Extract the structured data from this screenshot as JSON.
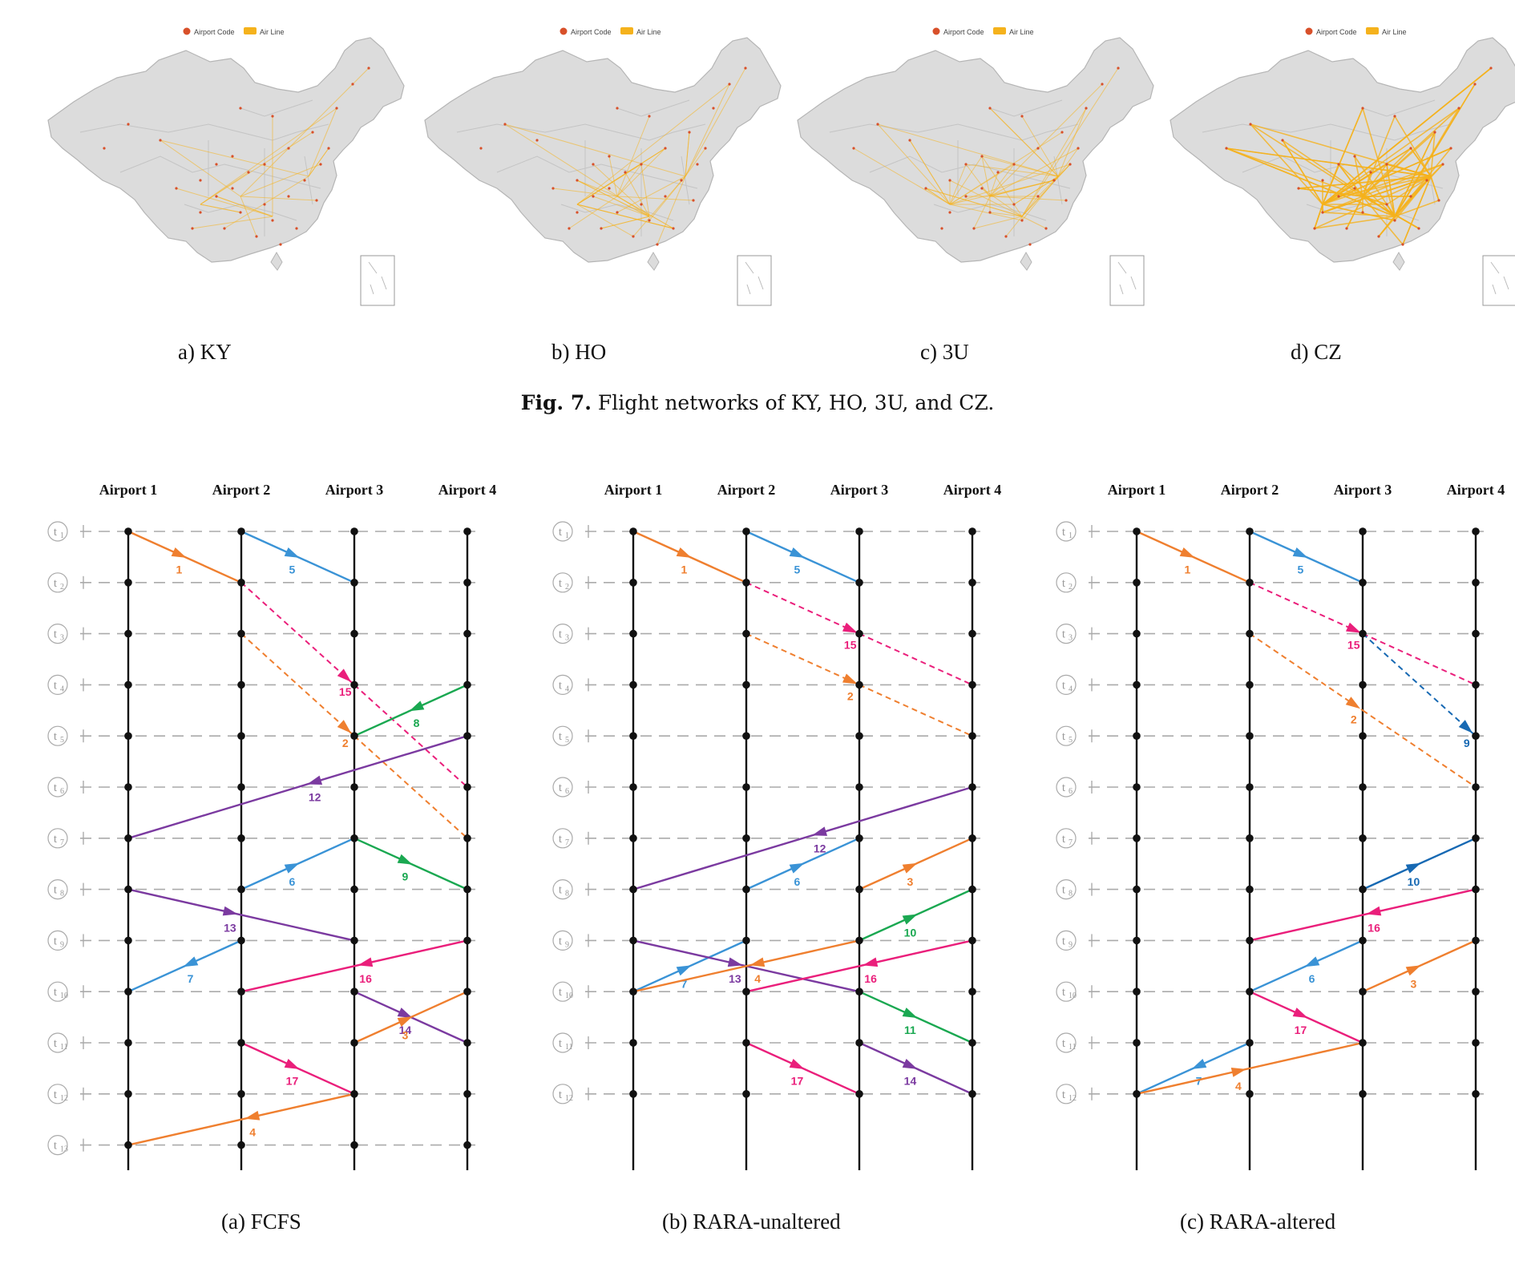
{
  "maps": {
    "legend": {
      "airport": "Airport Code",
      "airline": "Air Line"
    },
    "colors": {
      "land": "#dcdcdc",
      "border": "#b5b5b5",
      "route": "#f5b21c",
      "airport": "#d8502a"
    },
    "panels": [
      {
        "caption": "a) KY",
        "density": "low"
      },
      {
        "caption": "b) HO",
        "density": "medium"
      },
      {
        "caption": "c) 3U",
        "density": "medium-high"
      },
      {
        "caption": "d) CZ",
        "density": "high"
      }
    ]
  },
  "fig7": {
    "label": "Fig. 7.",
    "text": "Flight networks of KY, HO, 3U, and CZ."
  },
  "diagrams": {
    "airports": [
      "Airport 1",
      "Airport 2",
      "Airport 3",
      "Airport 4"
    ],
    "time_prefix": "t",
    "colors": {
      "orange": "#ef7f2f",
      "blue": "#3a93d6",
      "pink": "#ea1f7b",
      "green": "#1aa851",
      "purple": "#7b3aa0",
      "darkblue": "#1769b3"
    },
    "panels": [
      {
        "caption": "(a) FCFS",
        "time_slots": 13,
        "flights": [
          {
            "label": "1",
            "from": [
              1,
              1
            ],
            "to": [
              2,
              2
            ],
            "color": "orange",
            "dashed": false
          },
          {
            "label": "5",
            "from": [
              2,
              1
            ],
            "to": [
              3,
              2
            ],
            "color": "blue",
            "dashed": false
          },
          {
            "label": "15",
            "from": [
              2,
              2
            ],
            "to": [
              3,
              4
            ],
            "color": "pink",
            "dashed": true
          },
          {
            "label": "",
            "from": [
              3,
              4
            ],
            "to": [
              4,
              6
            ],
            "color": "pink",
            "dashed": true
          },
          {
            "label": "2",
            "from": [
              2,
              3
            ],
            "to": [
              3,
              5
            ],
            "color": "orange",
            "dashed": true
          },
          {
            "label": "",
            "from": [
              3,
              5
            ],
            "to": [
              4,
              7
            ],
            "color": "orange",
            "dashed": true
          },
          {
            "label": "8",
            "from": [
              4,
              4
            ],
            "to": [
              3,
              5
            ],
            "color": "green",
            "dashed": false
          },
          {
            "label": "12",
            "from": [
              4,
              5
            ],
            "to": [
              1,
              7
            ],
            "color": "purple",
            "dashed": false
          },
          {
            "label": "6",
            "from": [
              2,
              8
            ],
            "to": [
              3,
              7
            ],
            "color": "blue",
            "dashed": false
          },
          {
            "label": "9",
            "from": [
              3,
              7
            ],
            "to": [
              4,
              8
            ],
            "color": "green",
            "dashed": false
          },
          {
            "label": "13",
            "from": [
              1,
              8
            ],
            "to": [
              3,
              9
            ],
            "color": "purple",
            "dashed": false
          },
          {
            "label": "7",
            "from": [
              2,
              9
            ],
            "to": [
              1,
              10
            ],
            "color": "blue",
            "dashed": false
          },
          {
            "label": "16",
            "from": [
              4,
              9
            ],
            "to": [
              2,
              10
            ],
            "color": "pink",
            "dashed": false
          },
          {
            "label": "14",
            "from": [
              3,
              10
            ],
            "to": [
              4,
              11
            ],
            "color": "purple",
            "dashed": false
          },
          {
            "label": "3",
            "from": [
              3,
              11
            ],
            "to": [
              4,
              10
            ],
            "color": "orange",
            "dashed": false
          },
          {
            "label": "17",
            "from": [
              2,
              11
            ],
            "to": [
              3,
              12
            ],
            "color": "pink",
            "dashed": false
          },
          {
            "label": "4",
            "from": [
              3,
              12
            ],
            "to": [
              1,
              13
            ],
            "color": "orange",
            "dashed": false
          }
        ]
      },
      {
        "caption": "(b) RARA-unaltered",
        "time_slots": 12,
        "flights": [
          {
            "label": "1",
            "from": [
              1,
              1
            ],
            "to": [
              2,
              2
            ],
            "color": "orange",
            "dashed": false
          },
          {
            "label": "5",
            "from": [
              2,
              1
            ],
            "to": [
              3,
              2
            ],
            "color": "blue",
            "dashed": false
          },
          {
            "label": "15",
            "from": [
              2,
              2
            ],
            "to": [
              3,
              3
            ],
            "color": "pink",
            "dashed": true
          },
          {
            "label": "",
            "from": [
              3,
              3
            ],
            "to": [
              4,
              4
            ],
            "color": "pink",
            "dashed": true
          },
          {
            "label": "2",
            "from": [
              2,
              3
            ],
            "to": [
              3,
              4
            ],
            "color": "orange",
            "dashed": true
          },
          {
            "label": "",
            "from": [
              3,
              4
            ],
            "to": [
              4,
              5
            ],
            "color": "orange",
            "dashed": true
          },
          {
            "label": "12",
            "from": [
              4,
              6
            ],
            "to": [
              1,
              8
            ],
            "color": "purple",
            "dashed": false
          },
          {
            "label": "6",
            "from": [
              2,
              8
            ],
            "to": [
              3,
              7
            ],
            "color": "blue",
            "dashed": false
          },
          {
            "label": "3",
            "from": [
              3,
              8
            ],
            "to": [
              4,
              7
            ],
            "color": "orange",
            "dashed": false
          },
          {
            "label": "10",
            "from": [
              3,
              9
            ],
            "to": [
              4,
              8
            ],
            "color": "green",
            "dashed": false
          },
          {
            "label": "7",
            "from": [
              1,
              10
            ],
            "to": [
              2,
              9
            ],
            "color": "blue",
            "dashed": false
          },
          {
            "label": "13",
            "from": [
              1,
              9
            ],
            "to": [
              3,
              10
            ],
            "color": "purple",
            "dashed": false
          },
          {
            "label": "4",
            "from": [
              3,
              9
            ],
            "to": [
              1,
              10
            ],
            "color": "orange",
            "dashed": false
          },
          {
            "label": "16",
            "from": [
              4,
              9
            ],
            "to": [
              2,
              10
            ],
            "color": "pink",
            "dashed": false
          },
          {
            "label": "11",
            "from": [
              3,
              10
            ],
            "to": [
              4,
              11
            ],
            "color": "green",
            "dashed": false
          },
          {
            "label": "17",
            "from": [
              2,
              11
            ],
            "to": [
              3,
              12
            ],
            "color": "pink",
            "dashed": false
          },
          {
            "label": "14",
            "from": [
              3,
              11
            ],
            "to": [
              4,
              12
            ],
            "color": "purple",
            "dashed": false
          }
        ]
      },
      {
        "caption": "(c) RARA-altered",
        "time_slots": 12,
        "flights": [
          {
            "label": "1",
            "from": [
              1,
              1
            ],
            "to": [
              2,
              2
            ],
            "color": "orange",
            "dashed": false
          },
          {
            "label": "5",
            "from": [
              2,
              1
            ],
            "to": [
              3,
              2
            ],
            "color": "blue",
            "dashed": false
          },
          {
            "label": "15",
            "from": [
              2,
              2
            ],
            "to": [
              3,
              3
            ],
            "color": "pink",
            "dashed": true
          },
          {
            "label": "",
            "from": [
              3,
              3
            ],
            "to": [
              4,
              4
            ],
            "color": "pink",
            "dashed": true
          },
          {
            "label": "9",
            "from": [
              3,
              3
            ],
            "to": [
              4,
              5
            ],
            "color": "darkblue",
            "dashed": true
          },
          {
            "label": "2",
            "from": [
              2,
              3
            ],
            "to": [
              3,
              4.5
            ],
            "color": "orange",
            "dashed": true
          },
          {
            "label": "",
            "from": [
              3,
              4.5
            ],
            "to": [
              4,
              6
            ],
            "color": "orange",
            "dashed": true
          },
          {
            "label": "10",
            "from": [
              3,
              8
            ],
            "to": [
              4,
              7
            ],
            "color": "darkblue",
            "dashed": false
          },
          {
            "label": "16",
            "from": [
              4,
              8
            ],
            "to": [
              2,
              9
            ],
            "color": "pink",
            "dashed": false
          },
          {
            "label": "6",
            "from": [
              3,
              9
            ],
            "to": [
              2,
              10
            ],
            "color": "blue",
            "dashed": false
          },
          {
            "label": "3",
            "from": [
              3,
              10
            ],
            "to": [
              4,
              9
            ],
            "color": "orange",
            "dashed": false
          },
          {
            "label": "17",
            "from": [
              2,
              10
            ],
            "to": [
              3,
              11
            ],
            "color": "pink",
            "dashed": false
          },
          {
            "label": "7",
            "from": [
              2,
              11
            ],
            "to": [
              1,
              12
            ],
            "color": "blue",
            "dashed": false
          },
          {
            "label": "4",
            "from": [
              1,
              12
            ],
            "to": [
              3,
              11
            ],
            "color": "orange",
            "dashed": false
          }
        ]
      }
    ]
  }
}
